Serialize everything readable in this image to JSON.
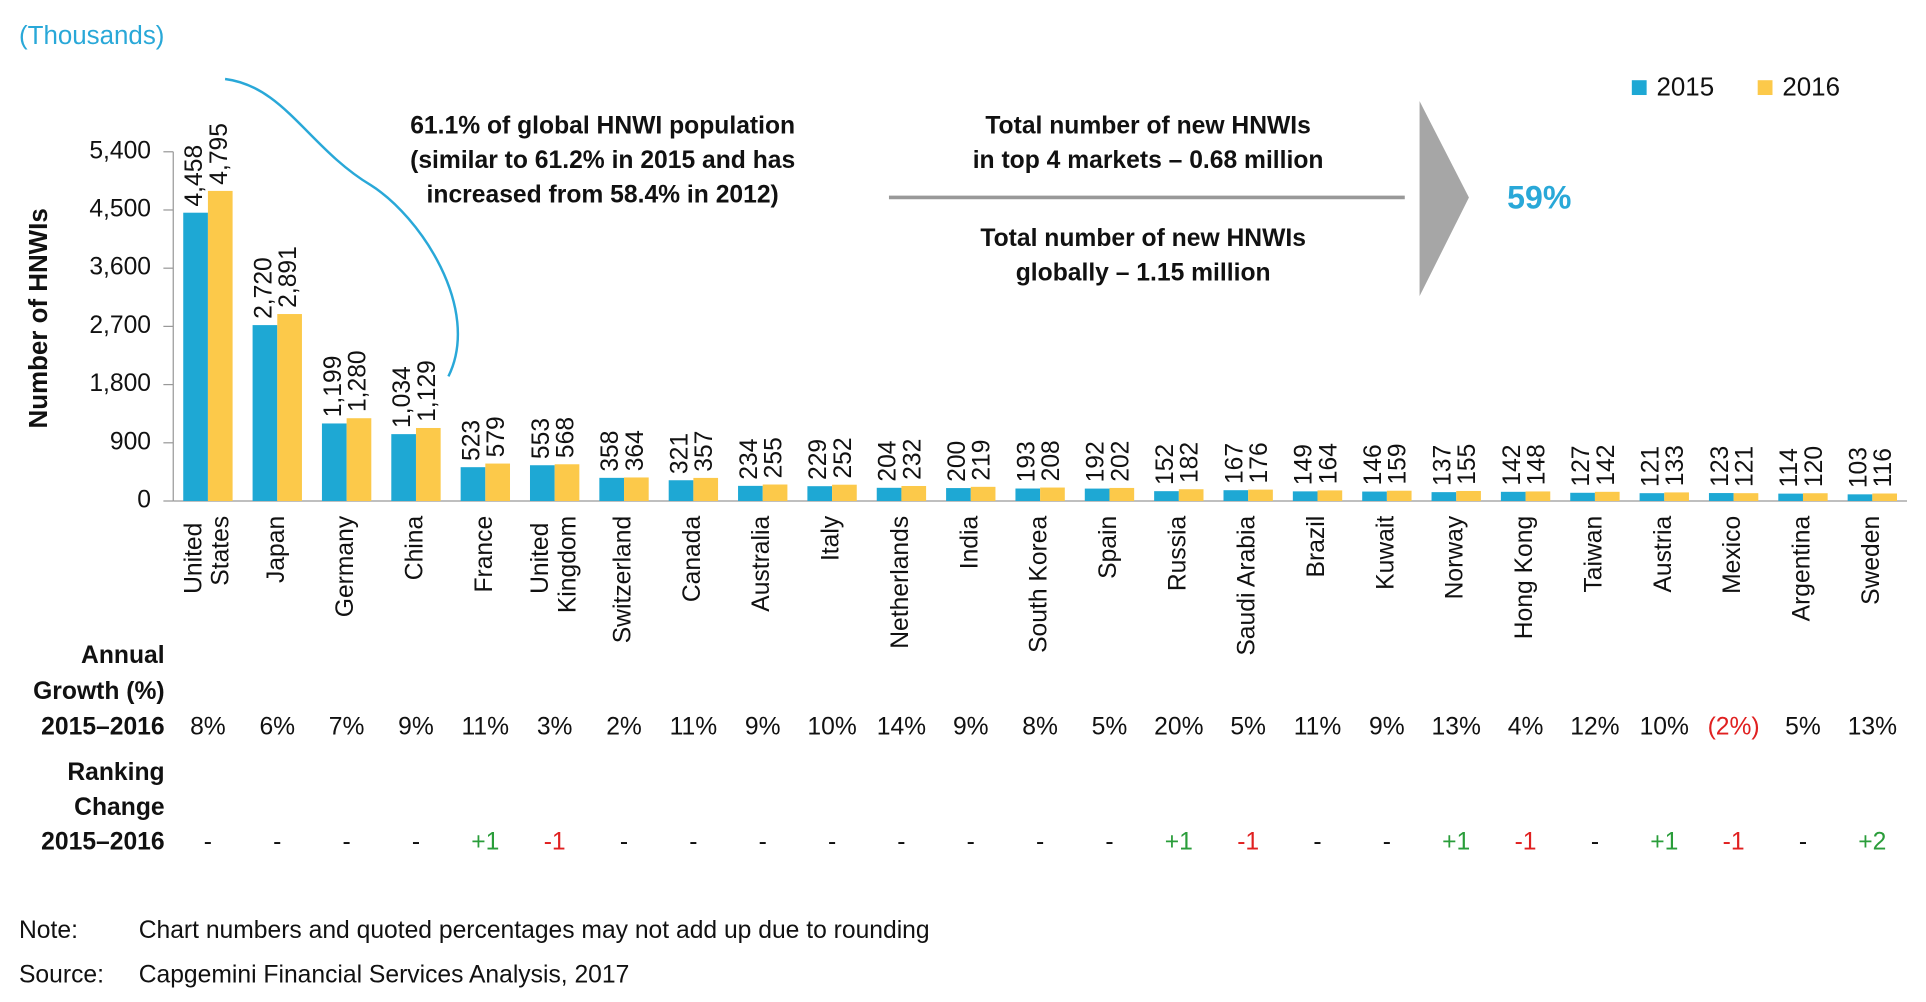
{
  "chart_data": {
    "type": "bar",
    "unit_label": "(Thousands)",
    "y_label": "Number of HNWIs",
    "categories": [
      "United States",
      "Japan",
      "Germany",
      "China",
      "France",
      "United Kingdom",
      "Switzerland",
      "Canada",
      "Australia",
      "Italy",
      "Netherlands",
      "India",
      "South Korea",
      "Spain",
      "Russia",
      "Saudi Arabia",
      "Brazil",
      "Kuwait",
      "Norway",
      "Hong Kong",
      "Taiwan",
      "Austria",
      "Mexico",
      "Argentina",
      "Sweden"
    ],
    "series": [
      {
        "name": "2015",
        "color": "#1ea8d4",
        "values": [
          4458,
          2720,
          1199,
          1034,
          523,
          553,
          358,
          321,
          234,
          229,
          204,
          200,
          193,
          192,
          152,
          167,
          149,
          146,
          137,
          142,
          127,
          121,
          123,
          114,
          103
        ],
        "value_labels": [
          "4,458",
          "2,720",
          "1,199",
          "1,034",
          "523",
          "553",
          "358",
          "321",
          "234",
          "229",
          "204",
          "200",
          "193",
          "192",
          "152",
          "167",
          "149",
          "146",
          "137",
          "142",
          "127",
          "121",
          "123",
          "114",
          "103"
        ]
      },
      {
        "name": "2016",
        "color": "#fcc94a",
        "values": [
          4795,
          2891,
          1280,
          1129,
          579,
          568,
          364,
          357,
          255,
          252,
          232,
          219,
          208,
          202,
          182,
          176,
          164,
          159,
          155,
          148,
          142,
          133,
          121,
          120,
          116
        ],
        "value_labels": [
          "4,795",
          "2,891",
          "1,280",
          "1,129",
          "579",
          "568",
          "364",
          "357",
          "255",
          "252",
          "232",
          "219",
          "208",
          "202",
          "182",
          "176",
          "164",
          "159",
          "155",
          "148",
          "142",
          "133",
          "121",
          "120",
          "116"
        ]
      }
    ],
    "ylim": [
      0,
      5400
    ],
    "yticks": [
      0,
      900,
      {
        "value": 1800,
        "label": "1,800"
      },
      {
        "value": 2700,
        "label": "2,700"
      },
      {
        "value": 3600,
        "label": "3,600"
      },
      {
        "value": 4500,
        "label": "4,500"
      },
      {
        "value": 5400,
        "label": "5,400"
      }
    ],
    "legend": "top-right",
    "annotations": {
      "share": [
        "61.1% of global HNWI population",
        "(similar to 61.2% in 2015 and has",
        "increased from 58.4% in 2012)"
      ],
      "new_top4": [
        "Total number of new HNWIs",
        "in top 4 markets – 0.68 million"
      ],
      "new_global": [
        "Total number of new HNWIs",
        "globally – 1.15 million"
      ],
      "ratio": "59%"
    },
    "growth": {
      "label": [
        "Annual",
        "Growth (%)",
        "2015–2016"
      ],
      "values": [
        "8%",
        "6%",
        "7%",
        "9%",
        "11%",
        "3%",
        "2%",
        "11%",
        "9%",
        "10%",
        "14%",
        "9%",
        "8%",
        "5%",
        "20%",
        "5%",
        "11%",
        "9%",
        "13%",
        "4%",
        "12%",
        "10%",
        "(2%)",
        "5%",
        "13%"
      ]
    },
    "ranking": {
      "label": [
        "Ranking",
        "Change",
        "2015–2016"
      ],
      "values": [
        "-",
        "-",
        "-",
        "-",
        "+1",
        "-1",
        "-",
        "-",
        "-",
        "-",
        "-",
        "-",
        "-",
        "-",
        "+1",
        "-1",
        "-",
        "-",
        "+1",
        "-1",
        "-",
        "+1",
        "-1",
        "-",
        "+2"
      ]
    },
    "note": {
      "label": "Note:",
      "text": "Chart numbers and quoted percentages may not add up due to rounding"
    },
    "source": {
      "label": "Source:",
      "text": "Capgemini Financial Services Analysis, 2017"
    }
  }
}
